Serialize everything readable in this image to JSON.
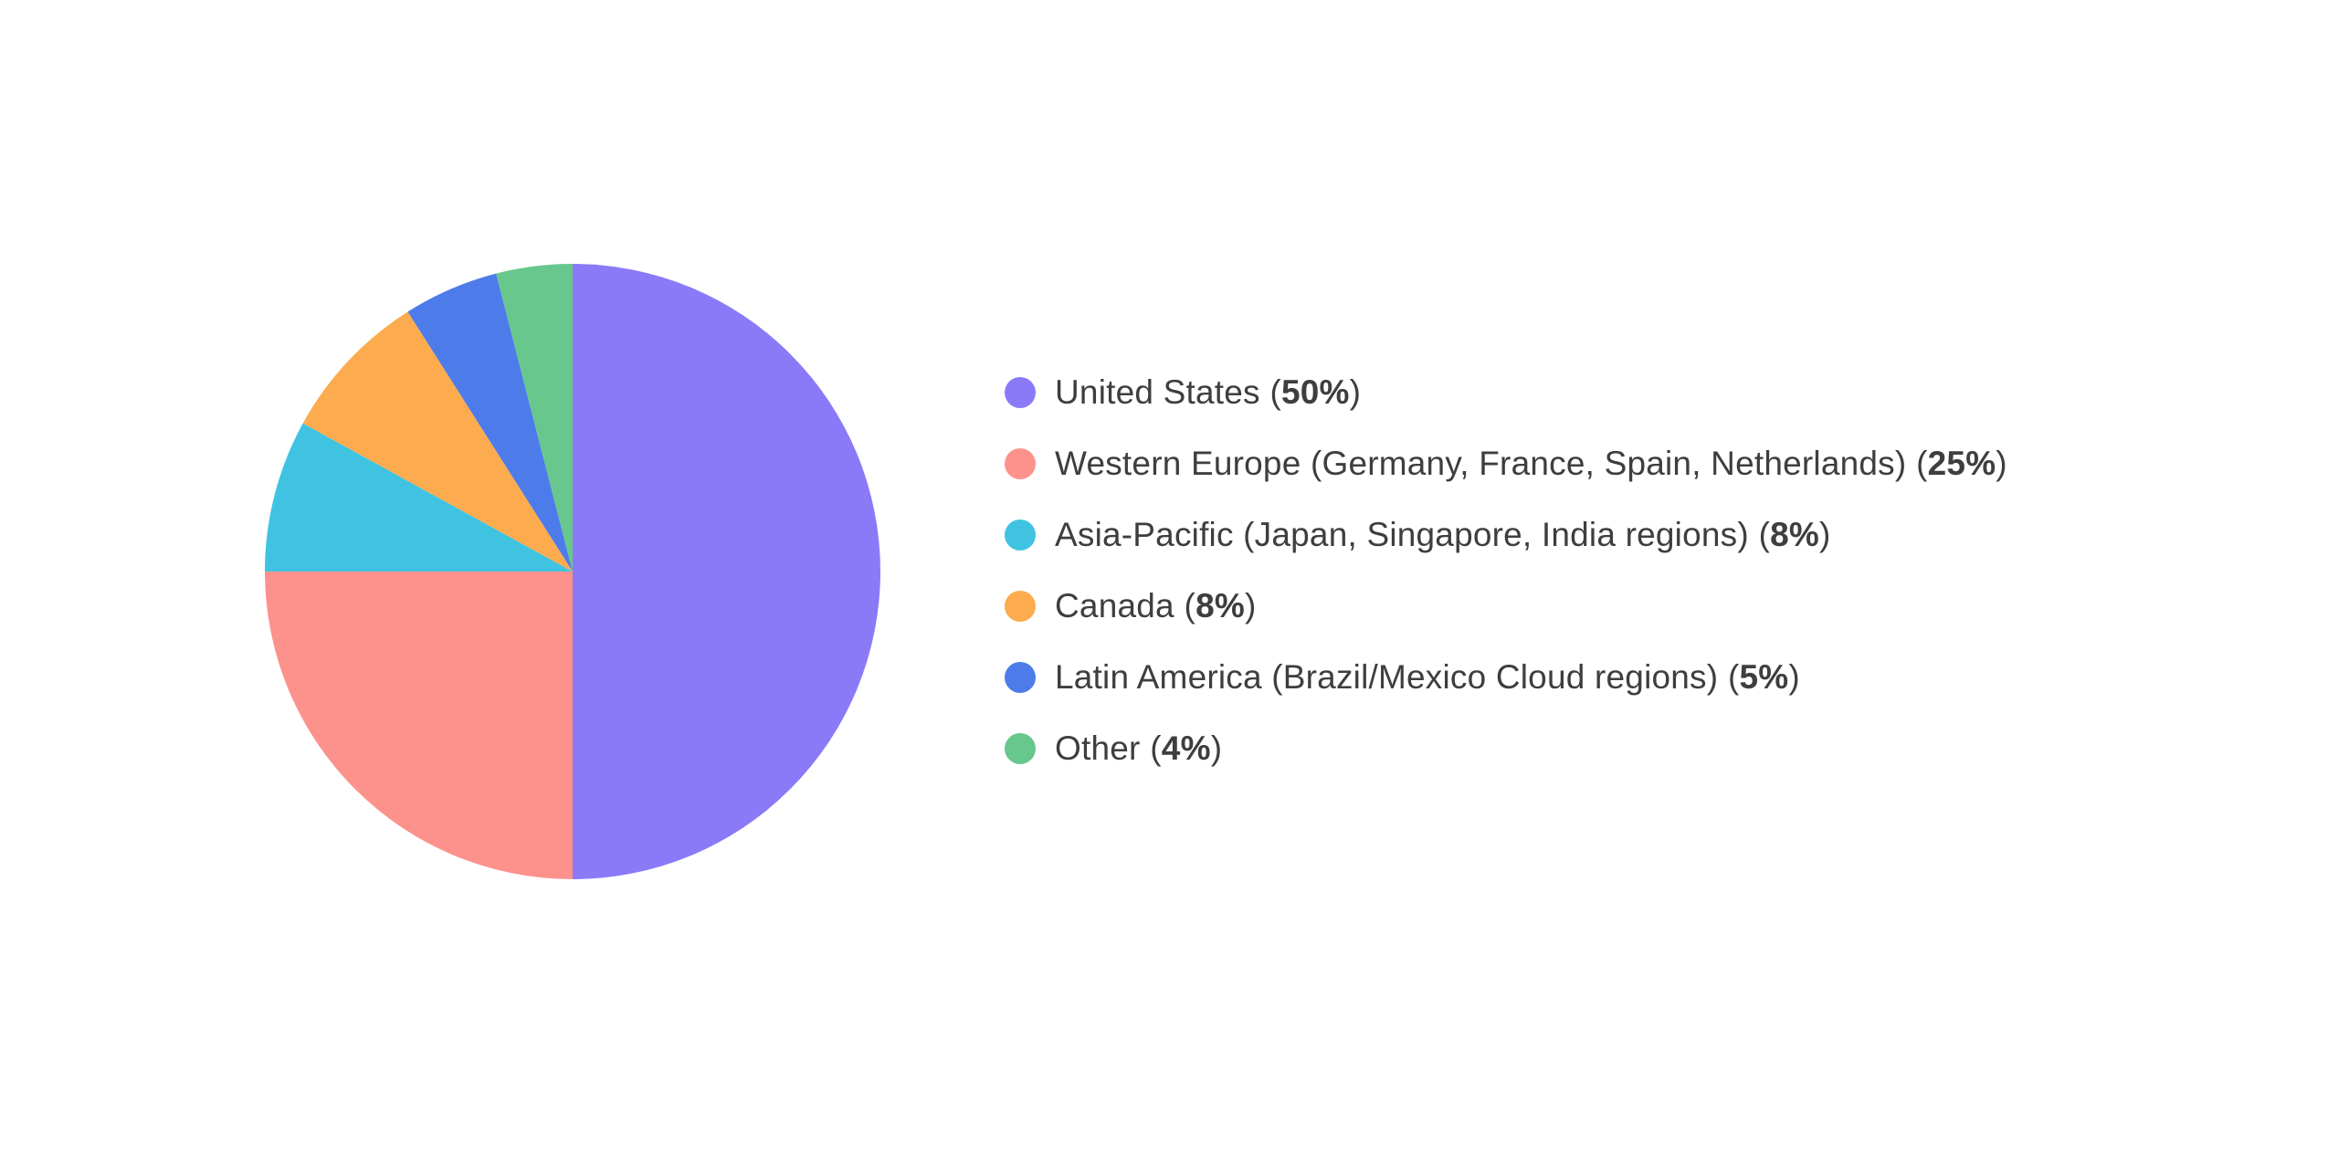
{
  "style": {
    "background": "#ffffff",
    "label_color": "#3e3e3e"
  },
  "chart_data": {
    "type": "pie",
    "title": "",
    "legend_position": "right",
    "start_angle_deg": 0,
    "direction": "clockwise",
    "total": 100,
    "categories": [
      "United States",
      "Western Europe (Germany, France, Spain, Netherlands)",
      "Asia-Pacific (Japan, Singapore, India regions)",
      "Canada",
      "Latin America (Brazil/Mexico Cloud regions)",
      "Other"
    ],
    "values": [
      50,
      25,
      8,
      8,
      5,
      4
    ],
    "colors": [
      "#8a7af8",
      "#fd928d",
      "#3fc3e0",
      "#fcab4f",
      "#4d7cea",
      "#68c78c"
    ],
    "punctuation": {
      "open": "(",
      "close": ")"
    },
    "slices": [
      {
        "name": "United States",
        "value": 50,
        "pct": "50%",
        "color": "#8a7af8"
      },
      {
        "name": "Western Europe (Germany, France, Spain, Netherlands)",
        "value": 25,
        "pct": "25%",
        "color": "#fd928d"
      },
      {
        "name": "Asia-Pacific (Japan, Singapore, India regions)",
        "value": 8,
        "pct": "8%",
        "color": "#3fc3e0"
      },
      {
        "name": "Canada",
        "value": 8,
        "pct": "8%",
        "color": "#fcab4f"
      },
      {
        "name": "Latin America (Brazil/Mexico Cloud regions)",
        "value": 5,
        "pct": "5%",
        "color": "#4d7cea"
      },
      {
        "name": "Other",
        "value": 4,
        "pct": "4%",
        "color": "#68c78c"
      }
    ]
  }
}
